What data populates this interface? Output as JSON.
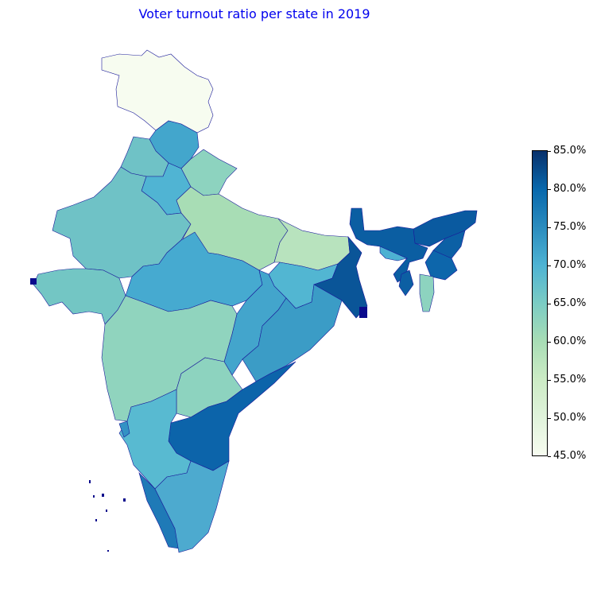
{
  "title": "Voter turnout ratio per state in 2019",
  "legend": {
    "ticks": [
      "85.0%",
      "80.0%",
      "75.0%",
      "70.0%",
      "65.0%",
      "60.0%",
      "55.0%",
      "50.0%",
      "45.0%"
    ],
    "gradient": [
      "#08306b",
      "#0868ac",
      "#2b8cbe",
      "#4eb3d3",
      "#7bccc4",
      "#a8ddb5",
      "#ccebc5",
      "#e0f3db",
      "#f7fcf0"
    ]
  },
  "colors": {
    "kashmir": "#f7fcf0",
    "punjab": "#6fc2c6",
    "himachal": "#43a6cc",
    "uttarakhand": "#8dd3bf",
    "haryana": "#50b4d3",
    "rajasthan": "#6fc2c6",
    "uttar_pradesh": "#a8ddb5",
    "bihar": "#b8e3be",
    "gujarat": "#73c6c4",
    "madhya_pradesh": "#46aad0",
    "maharashtra": "#90d4be",
    "chhattisgarh": "#43a5cc",
    "jharkhand": "#52b6d2",
    "west_bengal": "#0a5598",
    "odisha": "#3b9cc6",
    "telangana": "#8dd3bf",
    "andhra_pradesh": "#0c64aa",
    "karnataka": "#58bad1",
    "tamil_nadu": "#4daacf",
    "kerala": "#1f7ab7",
    "arunachal": "#0a5aa0",
    "assam": "#0b5ea2",
    "meghalaya": "#4db1d2",
    "nagaland": "#0c60a5",
    "manipur": "#0d66ab",
    "mizoram": "#8dd3bf",
    "tripura": "#0c5fa3",
    "goa": "#3392c4",
    "islands": "#0a0a8c"
  }
}
